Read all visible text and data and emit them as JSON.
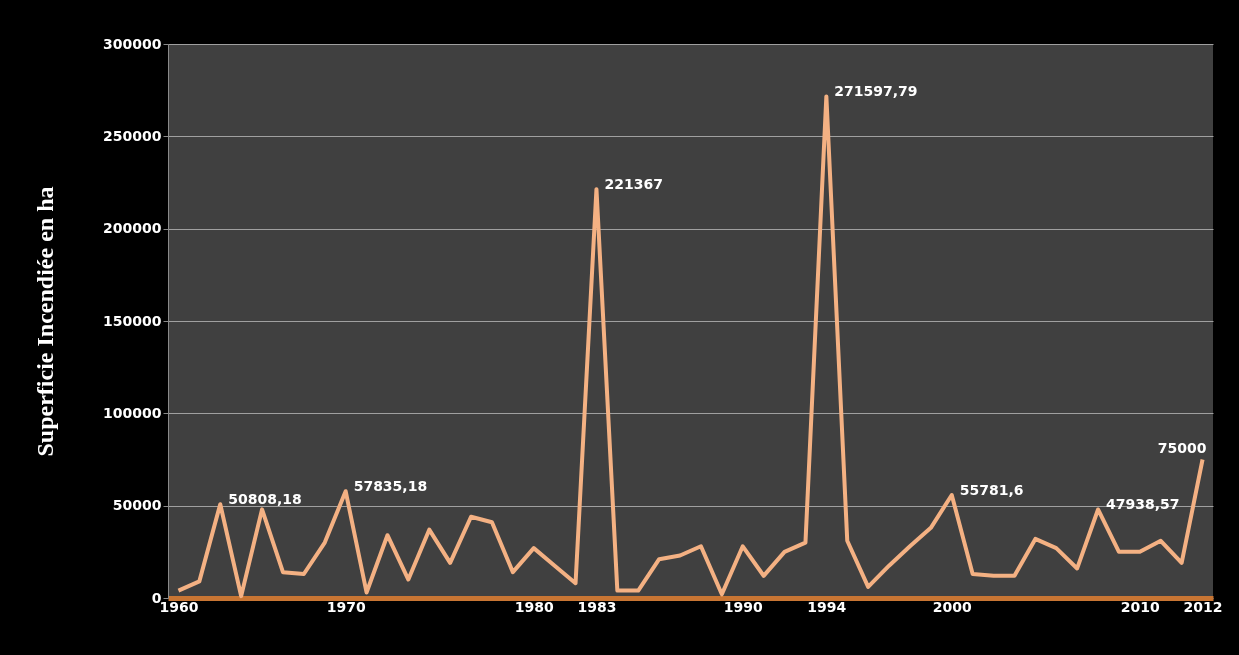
{
  "chart_data": {
    "type": "line",
    "ylabel": "Superficie Incendiée en ha",
    "categories": [
      "1960",
      null,
      null,
      null,
      null,
      null,
      null,
      null,
      "1970",
      null,
      null,
      null,
      null,
      null,
      null,
      null,
      null,
      "1980",
      null,
      null,
      "1983",
      null,
      null,
      null,
      null,
      null,
      null,
      "1990",
      null,
      null,
      null,
      "1994",
      null,
      null,
      null,
      null,
      null,
      "2000",
      null,
      null,
      null,
      null,
      null,
      null,
      null,
      null,
      "2010",
      null,
      null,
      "2012"
    ],
    "series": [
      {
        "color": "#f4b183",
        "values": [
          4000,
          9000,
          50808.18,
          1000,
          48000,
          14000,
          13000,
          30000,
          57835.18,
          3000,
          34000,
          10000,
          37000,
          19000,
          44000,
          41000,
          14000,
          27000,
          17500,
          8000,
          221367,
          4000,
          4000,
          21000,
          23000,
          28000,
          2000,
          28000,
          12000,
          25000,
          30000,
          271597.79,
          31000,
          6000,
          17500,
          28000,
          38000,
          55781.6,
          13000,
          12000,
          12000,
          32000,
          27000,
          16000,
          47938.57,
          25000,
          25000,
          31000,
          19000,
          75000
        ],
        "value_labels": [
          null,
          null,
          "50808,18",
          null,
          null,
          null,
          null,
          null,
          "57835,18",
          null,
          null,
          null,
          null,
          null,
          null,
          null,
          null,
          null,
          null,
          null,
          "221367",
          null,
          null,
          null,
          null,
          null,
          null,
          null,
          null,
          null,
          null,
          "271597,79",
          null,
          null,
          null,
          null,
          null,
          "55781,6",
          null,
          null,
          null,
          null,
          null,
          null,
          "47938,57",
          null,
          null,
          null,
          null,
          "75000"
        ]
      }
    ],
    "ylim": [
      0,
      300000
    ],
    "yticks": [
      0,
      50000,
      100000,
      150000,
      200000,
      250000,
      300000
    ],
    "grid": "y",
    "line_style": "solid",
    "marker": "none"
  }
}
